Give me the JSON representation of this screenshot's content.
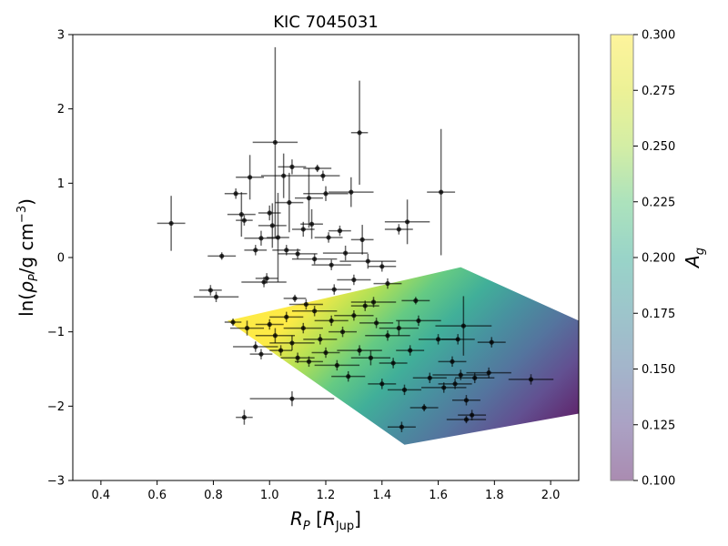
{
  "chart_data": {
    "type": "scatter",
    "title": "KIC 7045031",
    "xlim": [
      0.3,
      2.1
    ],
    "ylim": [
      -3,
      3
    ],
    "xticks": [
      "0.4",
      "0.6",
      "0.8",
      "1.0",
      "1.2",
      "1.4",
      "1.6",
      "1.8",
      "2.0"
    ],
    "yticks": [
      "3",
      "2",
      "1",
      "0",
      "−1",
      "−2",
      "−3"
    ],
    "grid": false,
    "colorbar": {
      "label": "A",
      "label_sub": "g",
      "range": [
        0.1,
        0.3
      ],
      "ticks": [
        "0.300",
        "0.275",
        "0.250",
        "0.225",
        "0.200",
        "0.175",
        "0.150",
        "0.125",
        "0.100"
      ],
      "colormap": "viridis"
    },
    "model_region": {
      "description_corners": [
        [
          0.85,
          -0.85
        ],
        [
          1.68,
          -0.13
        ],
        [
          2.1,
          -0.85
        ],
        [
          2.1,
          -2.1
        ],
        [
          1.48,
          -2.52
        ]
      ],
      "ag_low_edge": 0.1,
      "ag_high_edge": 0.3
    },
    "points": [
      [
        0.65,
        0.46,
        0.05,
        0.37
      ],
      [
        0.79,
        -0.44,
        0.04,
        0.07
      ],
      [
        0.81,
        -0.53,
        0.08,
        0.07
      ],
      [
        0.83,
        0.02,
        0.05,
        0.05
      ],
      [
        0.88,
        0.86,
        0.04,
        0.07
      ],
      [
        0.9,
        0.58,
        0.05,
        0.3
      ],
      [
        0.91,
        0.5,
        0.03,
        0.07
      ],
      [
        0.93,
        1.08,
        0.05,
        0.3
      ],
      [
        0.95,
        0.1,
        0.04,
        0.07
      ],
      [
        0.97,
        0.26,
        0.06,
        0.1
      ],
      [
        0.98,
        -0.33,
        0.08,
        0.07
      ],
      [
        0.99,
        -0.28,
        0.04,
        0.07
      ],
      [
        1.0,
        0.6,
        0.04,
        0.1
      ],
      [
        1.01,
        0.43,
        0.05,
        0.3
      ],
      [
        1.02,
        1.55,
        0.08,
        1.28
      ],
      [
        1.03,
        0.27,
        0.04,
        0.6
      ],
      [
        1.05,
        1.1,
        0.08,
        0.3
      ],
      [
        1.06,
        0.1,
        0.05,
        0.07
      ],
      [
        1.07,
        0.74,
        0.05,
        0.4
      ],
      [
        1.08,
        1.22,
        0.05,
        0.1
      ],
      [
        1.09,
        -0.55,
        0.04,
        0.05
      ],
      [
        1.1,
        0.05,
        0.07,
        0.07
      ],
      [
        1.12,
        0.38,
        0.04,
        0.1
      ],
      [
        1.13,
        -0.63,
        0.06,
        0.07
      ],
      [
        1.14,
        0.8,
        0.05,
        0.4
      ],
      [
        1.15,
        0.45,
        0.04,
        0.2
      ],
      [
        1.16,
        -0.02,
        0.08,
        0.07
      ],
      [
        1.17,
        1.2,
        0.05,
        0.05
      ],
      [
        1.19,
        1.1,
        0.06,
        0.07
      ],
      [
        1.2,
        0.86,
        0.08,
        0.1
      ],
      [
        1.21,
        0.27,
        0.05,
        0.07
      ],
      [
        1.22,
        -0.1,
        0.07,
        0.07
      ],
      [
        1.23,
        -0.43,
        0.06,
        0.07
      ],
      [
        1.25,
        0.36,
        0.04,
        0.07
      ],
      [
        1.27,
        0.06,
        0.08,
        0.1
      ],
      [
        1.29,
        0.88,
        0.08,
        0.2
      ],
      [
        1.3,
        -0.3,
        0.06,
        0.07
      ],
      [
        1.32,
        1.68,
        0.03,
        0.7
      ],
      [
        1.33,
        0.24,
        0.04,
        0.2
      ],
      [
        1.35,
        -0.05,
        0.1,
        0.1
      ],
      [
        1.37,
        -0.6,
        0.08,
        0.07
      ],
      [
        1.4,
        -0.12,
        0.05,
        0.07
      ],
      [
        1.42,
        -0.35,
        0.05,
        0.07
      ],
      [
        1.46,
        0.38,
        0.05,
        0.07
      ],
      [
        1.49,
        0.48,
        0.08,
        0.3
      ],
      [
        1.52,
        -0.58,
        0.05,
        0.05
      ],
      [
        1.61,
        0.88,
        0.05,
        0.85
      ],
      [
        0.87,
        -0.87,
        0.03,
        0.05
      ],
      [
        0.92,
        -0.95,
        0.06,
        0.1
      ],
      [
        0.95,
        -1.2,
        0.08,
        0.07
      ],
      [
        0.97,
        -1.3,
        0.04,
        0.07
      ],
      [
        1.0,
        -0.9,
        0.05,
        0.07
      ],
      [
        1.02,
        -1.05,
        0.07,
        0.1
      ],
      [
        1.04,
        -1.25,
        0.04,
        0.07
      ],
      [
        1.06,
        -0.8,
        0.06,
        0.07
      ],
      [
        1.08,
        -1.15,
        0.08,
        0.1
      ],
      [
        1.1,
        -1.35,
        0.06,
        0.07
      ],
      [
        1.12,
        -0.95,
        0.07,
        0.07
      ],
      [
        1.14,
        -1.4,
        0.05,
        0.07
      ],
      [
        1.16,
        -0.72,
        0.08,
        0.07
      ],
      [
        1.18,
        -1.1,
        0.06,
        0.07
      ],
      [
        1.2,
        -1.28,
        0.05,
        0.07
      ],
      [
        1.22,
        -0.85,
        0.06,
        0.07
      ],
      [
        1.24,
        -1.45,
        0.08,
        0.07
      ],
      [
        1.26,
        -1.0,
        0.05,
        0.07
      ],
      [
        1.28,
        -1.6,
        0.06,
        0.07
      ],
      [
        1.3,
        -0.78,
        0.07,
        0.07
      ],
      [
        1.32,
        -1.25,
        0.08,
        0.07
      ],
      [
        1.34,
        -0.65,
        0.05,
        0.07
      ],
      [
        1.36,
        -1.35,
        0.07,
        0.1
      ],
      [
        1.38,
        -0.88,
        0.06,
        0.07
      ],
      [
        1.4,
        -1.7,
        0.05,
        0.07
      ],
      [
        1.42,
        -1.05,
        0.08,
        0.07
      ],
      [
        1.44,
        -1.42,
        0.05,
        0.07
      ],
      [
        1.46,
        -0.95,
        0.07,
        0.1
      ],
      [
        1.48,
        -1.78,
        0.06,
        0.07
      ],
      [
        1.5,
        -1.25,
        0.05,
        0.07
      ],
      [
        1.53,
        -0.85,
        0.08,
        0.07
      ],
      [
        1.55,
        -2.02,
        0.05,
        0.05
      ],
      [
        1.57,
        -1.62,
        0.06,
        0.07
      ],
      [
        1.6,
        -1.1,
        0.07,
        0.07
      ],
      [
        1.62,
        -1.75,
        0.08,
        0.07
      ],
      [
        1.65,
        -1.4,
        0.05,
        0.07
      ],
      [
        1.67,
        -1.1,
        0.06,
        0.07
      ],
      [
        1.68,
        -1.58,
        0.1,
        0.07
      ],
      [
        1.69,
        -0.92,
        0.1,
        0.4
      ],
      [
        1.7,
        -1.92,
        0.05,
        0.07
      ],
      [
        1.72,
        -2.12,
        0.05,
        0.07
      ],
      [
        1.73,
        -1.62,
        0.07,
        0.07
      ],
      [
        1.78,
        -1.55,
        0.08,
        0.07
      ],
      [
        1.79,
        -1.14,
        0.05,
        0.07
      ],
      [
        1.93,
        -1.64,
        0.08,
        0.07
      ],
      [
        1.08,
        -1.9,
        0.15,
        0.1
      ],
      [
        0.91,
        -2.15,
        0.03,
        0.1
      ],
      [
        1.47,
        -2.28,
        0.05,
        0.07
      ],
      [
        1.7,
        -2.18,
        0.07,
        0.05
      ],
      [
        1.66,
        -1.7,
        0.06,
        0.07
      ]
    ]
  }
}
